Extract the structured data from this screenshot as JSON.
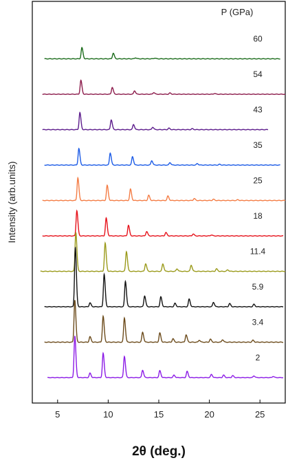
{
  "chart_data": {
    "type": "line",
    "title": "",
    "xlabel": "2θ (deg.)",
    "ylabel": "Intensity (arb.units)",
    "legend_title": "P (GPa)",
    "xlim": [
      2.5,
      27.5
    ],
    "x_ticks": [
      5,
      10,
      15,
      20,
      25
    ],
    "grid": false,
    "series": [
      {
        "name": "60",
        "color": "#1a6b1a",
        "x_start": 3.7,
        "x_end": 27.0,
        "peaks": [
          [
            7.4,
            0.45
          ],
          [
            10.5,
            0.23
          ],
          [
            12.7,
            0.04
          ],
          [
            14.6,
            0.03
          ]
        ]
      },
      {
        "name": "54",
        "color": "#8b1a4a",
        "x_start": 3.5,
        "x_end": 27.5,
        "peaks": [
          [
            7.3,
            0.56
          ],
          [
            10.4,
            0.28
          ],
          [
            12.6,
            0.14
          ],
          [
            14.5,
            0.07
          ],
          [
            16.1,
            0.05
          ],
          [
            20.5,
            0.03
          ]
        ]
      },
      {
        "name": "43",
        "color": "#5b1a8b",
        "x_start": 3.5,
        "x_end": 25.8,
        "peaks": [
          [
            7.2,
            0.69
          ],
          [
            10.3,
            0.4
          ],
          [
            12.5,
            0.21
          ],
          [
            14.4,
            0.1
          ],
          [
            16.0,
            0.06
          ],
          [
            18.3,
            0.04
          ]
        ]
      },
      {
        "name": "35",
        "color": "#1a5ae6",
        "x_start": 3.7,
        "x_end": 27.0,
        "peaks": [
          [
            7.1,
            0.67
          ],
          [
            10.2,
            0.49
          ],
          [
            12.4,
            0.34
          ],
          [
            14.3,
            0.18
          ],
          [
            16.1,
            0.1
          ],
          [
            18.8,
            0.06
          ],
          [
            21.0,
            0.03
          ]
        ]
      },
      {
        "name": "25",
        "color": "#f47c44",
        "x_start": 3.5,
        "x_end": 27.5,
        "peaks": [
          [
            7.0,
            0.92
          ],
          [
            9.9,
            0.61
          ],
          [
            12.2,
            0.46
          ],
          [
            14.0,
            0.21
          ],
          [
            15.9,
            0.18
          ],
          [
            18.5,
            0.08
          ],
          [
            20.4,
            0.05
          ],
          [
            22.8,
            0.03
          ]
        ]
      },
      {
        "name": "18",
        "color": "#e6111a",
        "x_start": 3.5,
        "x_end": 27.3,
        "peaks": [
          [
            6.9,
            1.02
          ],
          [
            9.8,
            0.72
          ],
          [
            12.0,
            0.43
          ],
          [
            13.8,
            0.18
          ],
          [
            15.7,
            0.14
          ],
          [
            18.4,
            0.08
          ],
          [
            20.2,
            0.04
          ]
        ]
      },
      {
        "name": "11.4",
        "color": "#9a9a1a",
        "x_start": 3.3,
        "x_end": 27.5,
        "peaks": [
          [
            6.8,
            1.58
          ],
          [
            9.7,
            1.14
          ],
          [
            11.8,
            0.8
          ],
          [
            13.7,
            0.31
          ],
          [
            15.4,
            0.3
          ],
          [
            16.8,
            0.1
          ],
          [
            18.2,
            0.25
          ],
          [
            20.7,
            0.1
          ],
          [
            21.8,
            0.06
          ]
        ]
      },
      {
        "name": "5.9",
        "color": "#111111",
        "x_start": 3.7,
        "x_end": 27.3,
        "peaks": [
          [
            6.75,
            2.4
          ],
          [
            8.2,
            0.16
          ],
          [
            9.6,
            1.31
          ],
          [
            11.7,
            1.03
          ],
          [
            13.6,
            0.44
          ],
          [
            15.2,
            0.4
          ],
          [
            16.6,
            0.14
          ],
          [
            18.0,
            0.31
          ],
          [
            20.4,
            0.18
          ],
          [
            22.0,
            0.13
          ],
          [
            24.4,
            0.1
          ]
        ]
      },
      {
        "name": "3.4",
        "color": "#6b4a1a",
        "x_start": 3.7,
        "x_end": 27.3,
        "peaks": [
          [
            6.7,
            1.7
          ],
          [
            8.2,
            0.22
          ],
          [
            9.5,
            1.05
          ],
          [
            11.6,
            0.98
          ],
          [
            13.4,
            0.4
          ],
          [
            15.1,
            0.37
          ],
          [
            16.4,
            0.14
          ],
          [
            17.7,
            0.3
          ],
          [
            19.0,
            0.08
          ],
          [
            20.1,
            0.12
          ],
          [
            21.3,
            0.1
          ],
          [
            24.3,
            0.08
          ]
        ]
      },
      {
        "name": "2",
        "color": "#8b1ae6",
        "x_start": 4.0,
        "x_end": 27.3,
        "peaks": [
          [
            6.7,
            1.68
          ],
          [
            8.2,
            0.18
          ],
          [
            9.5,
            0.98
          ],
          [
            11.6,
            0.86
          ],
          [
            13.4,
            0.3
          ],
          [
            15.1,
            0.28
          ],
          [
            16.5,
            0.1
          ],
          [
            17.8,
            0.25
          ],
          [
            20.2,
            0.13
          ],
          [
            21.4,
            0.1
          ],
          [
            22.3,
            0.08
          ],
          [
            24.4,
            0.07
          ],
          [
            26.3,
            0.05
          ]
        ]
      }
    ]
  }
}
